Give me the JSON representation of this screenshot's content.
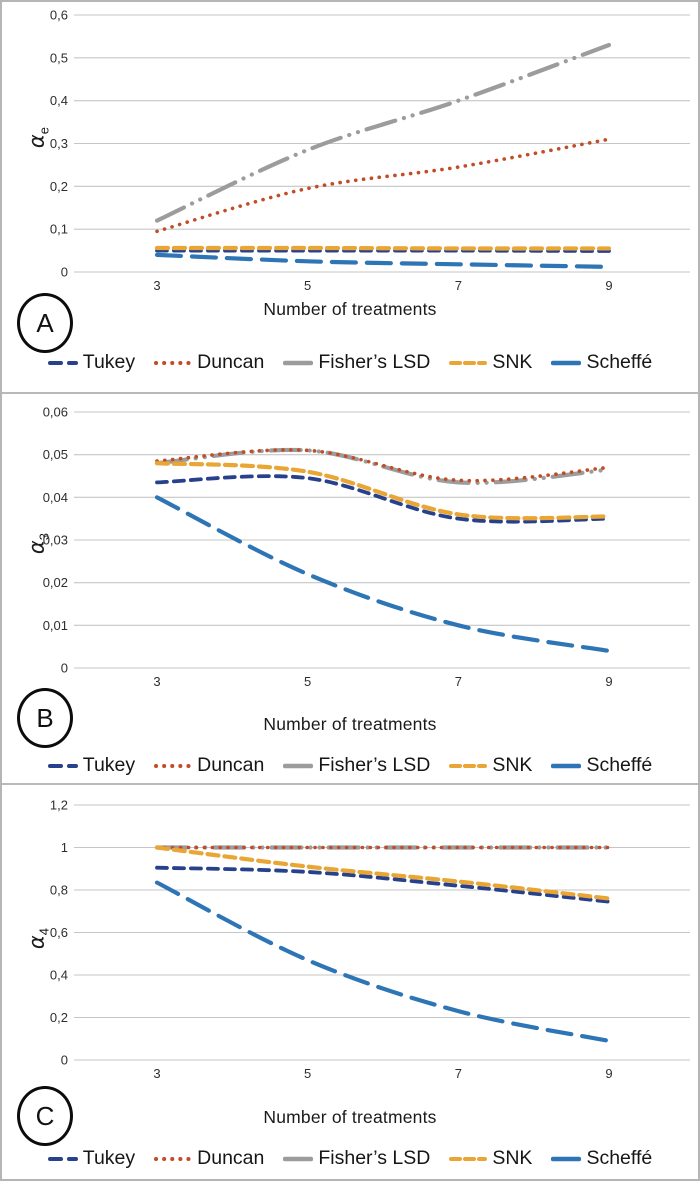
{
  "figure": {
    "x_axis_title": "Number of treatments",
    "x_ticks": [
      "3",
      "5",
      "7",
      "9"
    ],
    "legend": [
      {
        "name": "Tukey",
        "color": "#27418c",
        "style": "dashed"
      },
      {
        "name": "Duncan",
        "color": "#c04d26",
        "style": "dotted"
      },
      {
        "name": "Fisher’s LSD",
        "color": "#9c9c9c",
        "style": "solid"
      },
      {
        "name": "SNK",
        "color": "#e9a634",
        "style": "dashed"
      },
      {
        "name": "Scheffé",
        "color": "#2e75b6",
        "style": "solid"
      }
    ],
    "panels": [
      {
        "label": "A",
        "y_label_main": "α",
        "y_label_sub": "e",
        "y_ticks": [
          "0",
          "0,1",
          "0,2",
          "0,3",
          "0,4",
          "0,5",
          "0,6"
        ]
      },
      {
        "label": "B",
        "y_label_main": "α",
        "y_label_sub": "3",
        "y_ticks": [
          "0",
          "0,01",
          "0,02",
          "0,03",
          "0,04",
          "0,05",
          "0,06"
        ]
      },
      {
        "label": "C",
        "y_label_main": "α",
        "y_label_sub": "4",
        "y_ticks": [
          "0",
          "0,2",
          "0,4",
          "0,6",
          "0,8",
          "1",
          "1,2"
        ]
      }
    ]
  },
  "chart_data": [
    {
      "type": "line",
      "panel": "A",
      "xlabel": "Number of treatments",
      "ylabel": "alpha_e",
      "x": [
        3,
        5,
        7,
        9
      ],
      "ylim": [
        0,
        0.6
      ],
      "grid": true,
      "legend_position": "bottom",
      "series": [
        {
          "name": "Tukey",
          "values": [
            0.05,
            0.05,
            0.05,
            0.049
          ]
        },
        {
          "name": "Duncan",
          "values": [
            0.095,
            0.195,
            0.245,
            0.31
          ]
        },
        {
          "name": "Fisher's LSD",
          "values": [
            0.12,
            0.285,
            0.4,
            0.53
          ]
        },
        {
          "name": "SNK",
          "values": [
            0.056,
            0.056,
            0.055,
            0.055
          ]
        },
        {
          "name": "Scheffé",
          "values": [
            0.04,
            0.025,
            0.018,
            0.012
          ]
        }
      ]
    },
    {
      "type": "line",
      "panel": "B",
      "xlabel": "Number of treatments",
      "ylabel": "alpha_3",
      "x": [
        3,
        5,
        7,
        9
      ],
      "ylim": [
        0,
        0.06
      ],
      "grid": true,
      "legend_position": "bottom",
      "series": [
        {
          "name": "Tukey",
          "values": [
            0.0435,
            0.0445,
            0.035,
            0.035
          ]
        },
        {
          "name": "Duncan",
          "values": [
            0.0485,
            0.051,
            0.044,
            0.047
          ]
        },
        {
          "name": "Fisher's LSD",
          "values": [
            0.048,
            0.051,
            0.0435,
            0.0465
          ]
        },
        {
          "name": "SNK",
          "values": [
            0.048,
            0.046,
            0.036,
            0.0355
          ]
        },
        {
          "name": "Scheffé",
          "values": [
            0.04,
            0.022,
            0.01,
            0.004
          ]
        }
      ]
    },
    {
      "type": "line",
      "panel": "C",
      "xlabel": "Number of treatments",
      "ylabel": "alpha_4",
      "x": [
        3,
        5,
        7,
        9
      ],
      "ylim": [
        0,
        1.2
      ],
      "grid": true,
      "legend_position": "bottom",
      "series": [
        {
          "name": "Tukey",
          "values": [
            0.905,
            0.885,
            0.82,
            0.745
          ]
        },
        {
          "name": "Duncan",
          "values": [
            1.0,
            1.0,
            1.0,
            1.0
          ]
        },
        {
          "name": "Fisher's LSD",
          "values": [
            1.0,
            1.0,
            1.0,
            1.0
          ]
        },
        {
          "name": "SNK",
          "values": [
            1.0,
            0.91,
            0.84,
            0.76
          ]
        },
        {
          "name": "Scheffé",
          "values": [
            0.835,
            0.47,
            0.23,
            0.09
          ]
        }
      ]
    }
  ]
}
